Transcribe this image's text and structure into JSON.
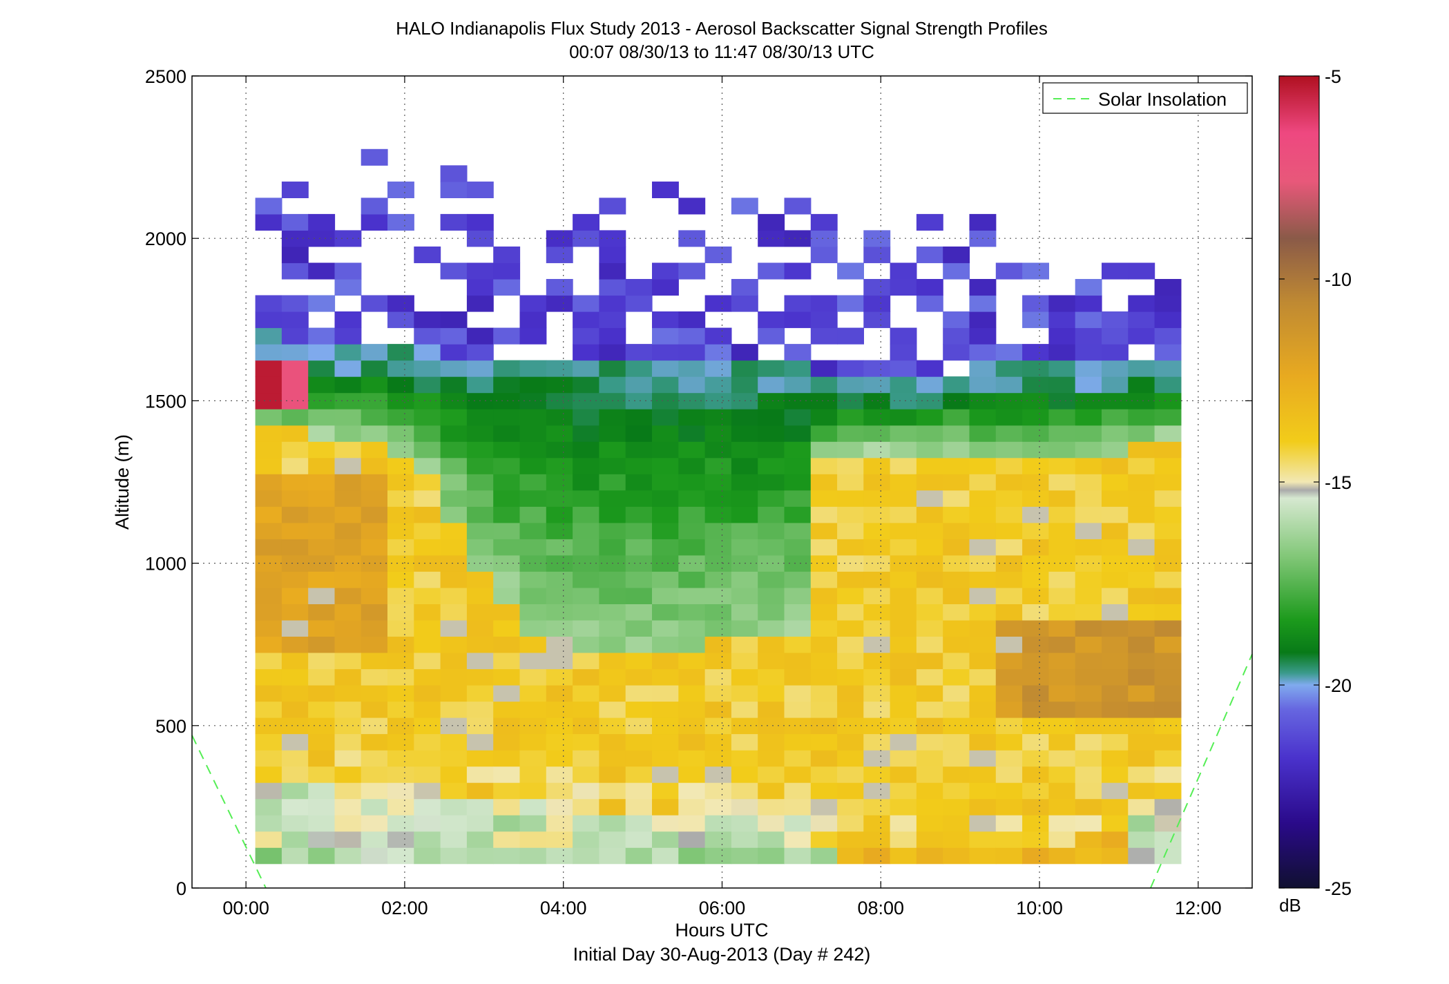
{
  "chart_data": {
    "type": "heatmap",
    "title": "HALO Indianapolis Flux Study 2013 - Aerosol Backscatter Signal Strength Profiles",
    "subtitle": "00:07 08/30/13 to 11:47 08/30/13  UTC",
    "xlabel": "Hours UTC",
    "xlabel2": "Initial Day 30-Aug-2013 (Day # 242)",
    "ylabel": "Altitude (m)",
    "xlim": [
      -0.68,
      12.68
    ],
    "ylim": [
      0,
      2500
    ],
    "x_ticks": [
      0,
      2,
      4,
      6,
      8,
      10,
      12
    ],
    "x_tick_labels": [
      "00:00",
      "02:00",
      "04:00",
      "06:00",
      "08:00",
      "10:00",
      "12:00"
    ],
    "y_ticks": [
      0,
      500,
      1000,
      1500,
      2000,
      2500
    ],
    "y_tick_labels": [
      "0",
      "500",
      "1000",
      "1500",
      "2000",
      "2500"
    ],
    "grid": true,
    "legend": {
      "position": "top-right",
      "entries": [
        {
          "label": "Solar Insolation",
          "style": "dashed",
          "color": "#55ee55"
        }
      ]
    },
    "colorbar": {
      "label": "dB",
      "range": [
        -25,
        -5
      ],
      "ticks": [
        -25,
        -20,
        -15,
        -10,
        -5
      ],
      "tick_labels": [
        "-25",
        "-20",
        "-15",
        "-10",
        "-5"
      ]
    },
    "cell_hours": 0.3333,
    "cell_meters": 50,
    "time_start_hour": 0.117,
    "time_end_hour": 11.783,
    "solar_insolation": {
      "left": [
        {
          "x": -0.68,
          "y": 470
        },
        {
          "x": 0.25,
          "y": 0
        }
      ],
      "right": [
        {
          "x": 11.4,
          "y": 0
        },
        {
          "x": 12.68,
          "y": 720
        }
      ]
    },
    "profile_description": "values in dB: surface ~-17 green, boundary layer ~-13 yellow, residual/cloud layer ~-18 green near 1100-1600 m, sparse ~-22 purple returns above 1600 m to ~2300 m"
  }
}
